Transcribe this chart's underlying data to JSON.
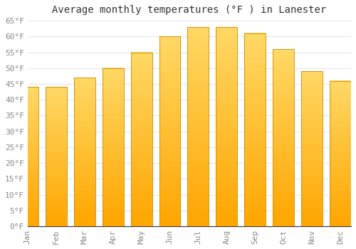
{
  "title": "Average monthly temperatures (°F ) in Lanester",
  "months": [
    "Jan",
    "Feb",
    "Mar",
    "Apr",
    "May",
    "Jun",
    "Jul",
    "Aug",
    "Sep",
    "Oct",
    "Nov",
    "Dec"
  ],
  "values": [
    44,
    44,
    47,
    50,
    55,
    60,
    63,
    63,
    61,
    56,
    49,
    46
  ],
  "bar_color_top": "#FFD966",
  "bar_color_bottom": "#FFA500",
  "bar_edge_color": "#CC8800",
  "ylim": [
    0,
    65
  ],
  "yticks": [
    0,
    5,
    10,
    15,
    20,
    25,
    30,
    35,
    40,
    45,
    50,
    55,
    60,
    65
  ],
  "ytick_labels": [
    "0°F",
    "5°F",
    "10°F",
    "15°F",
    "20°F",
    "25°F",
    "30°F",
    "35°F",
    "40°F",
    "45°F",
    "50°F",
    "55°F",
    "60°F",
    "65°F"
  ],
  "background_color": "#ffffff",
  "grid_color": "#e8e8e8",
  "title_fontsize": 10,
  "tick_fontsize": 8,
  "figsize": [
    5.0,
    3.5
  ],
  "dpi": 100
}
